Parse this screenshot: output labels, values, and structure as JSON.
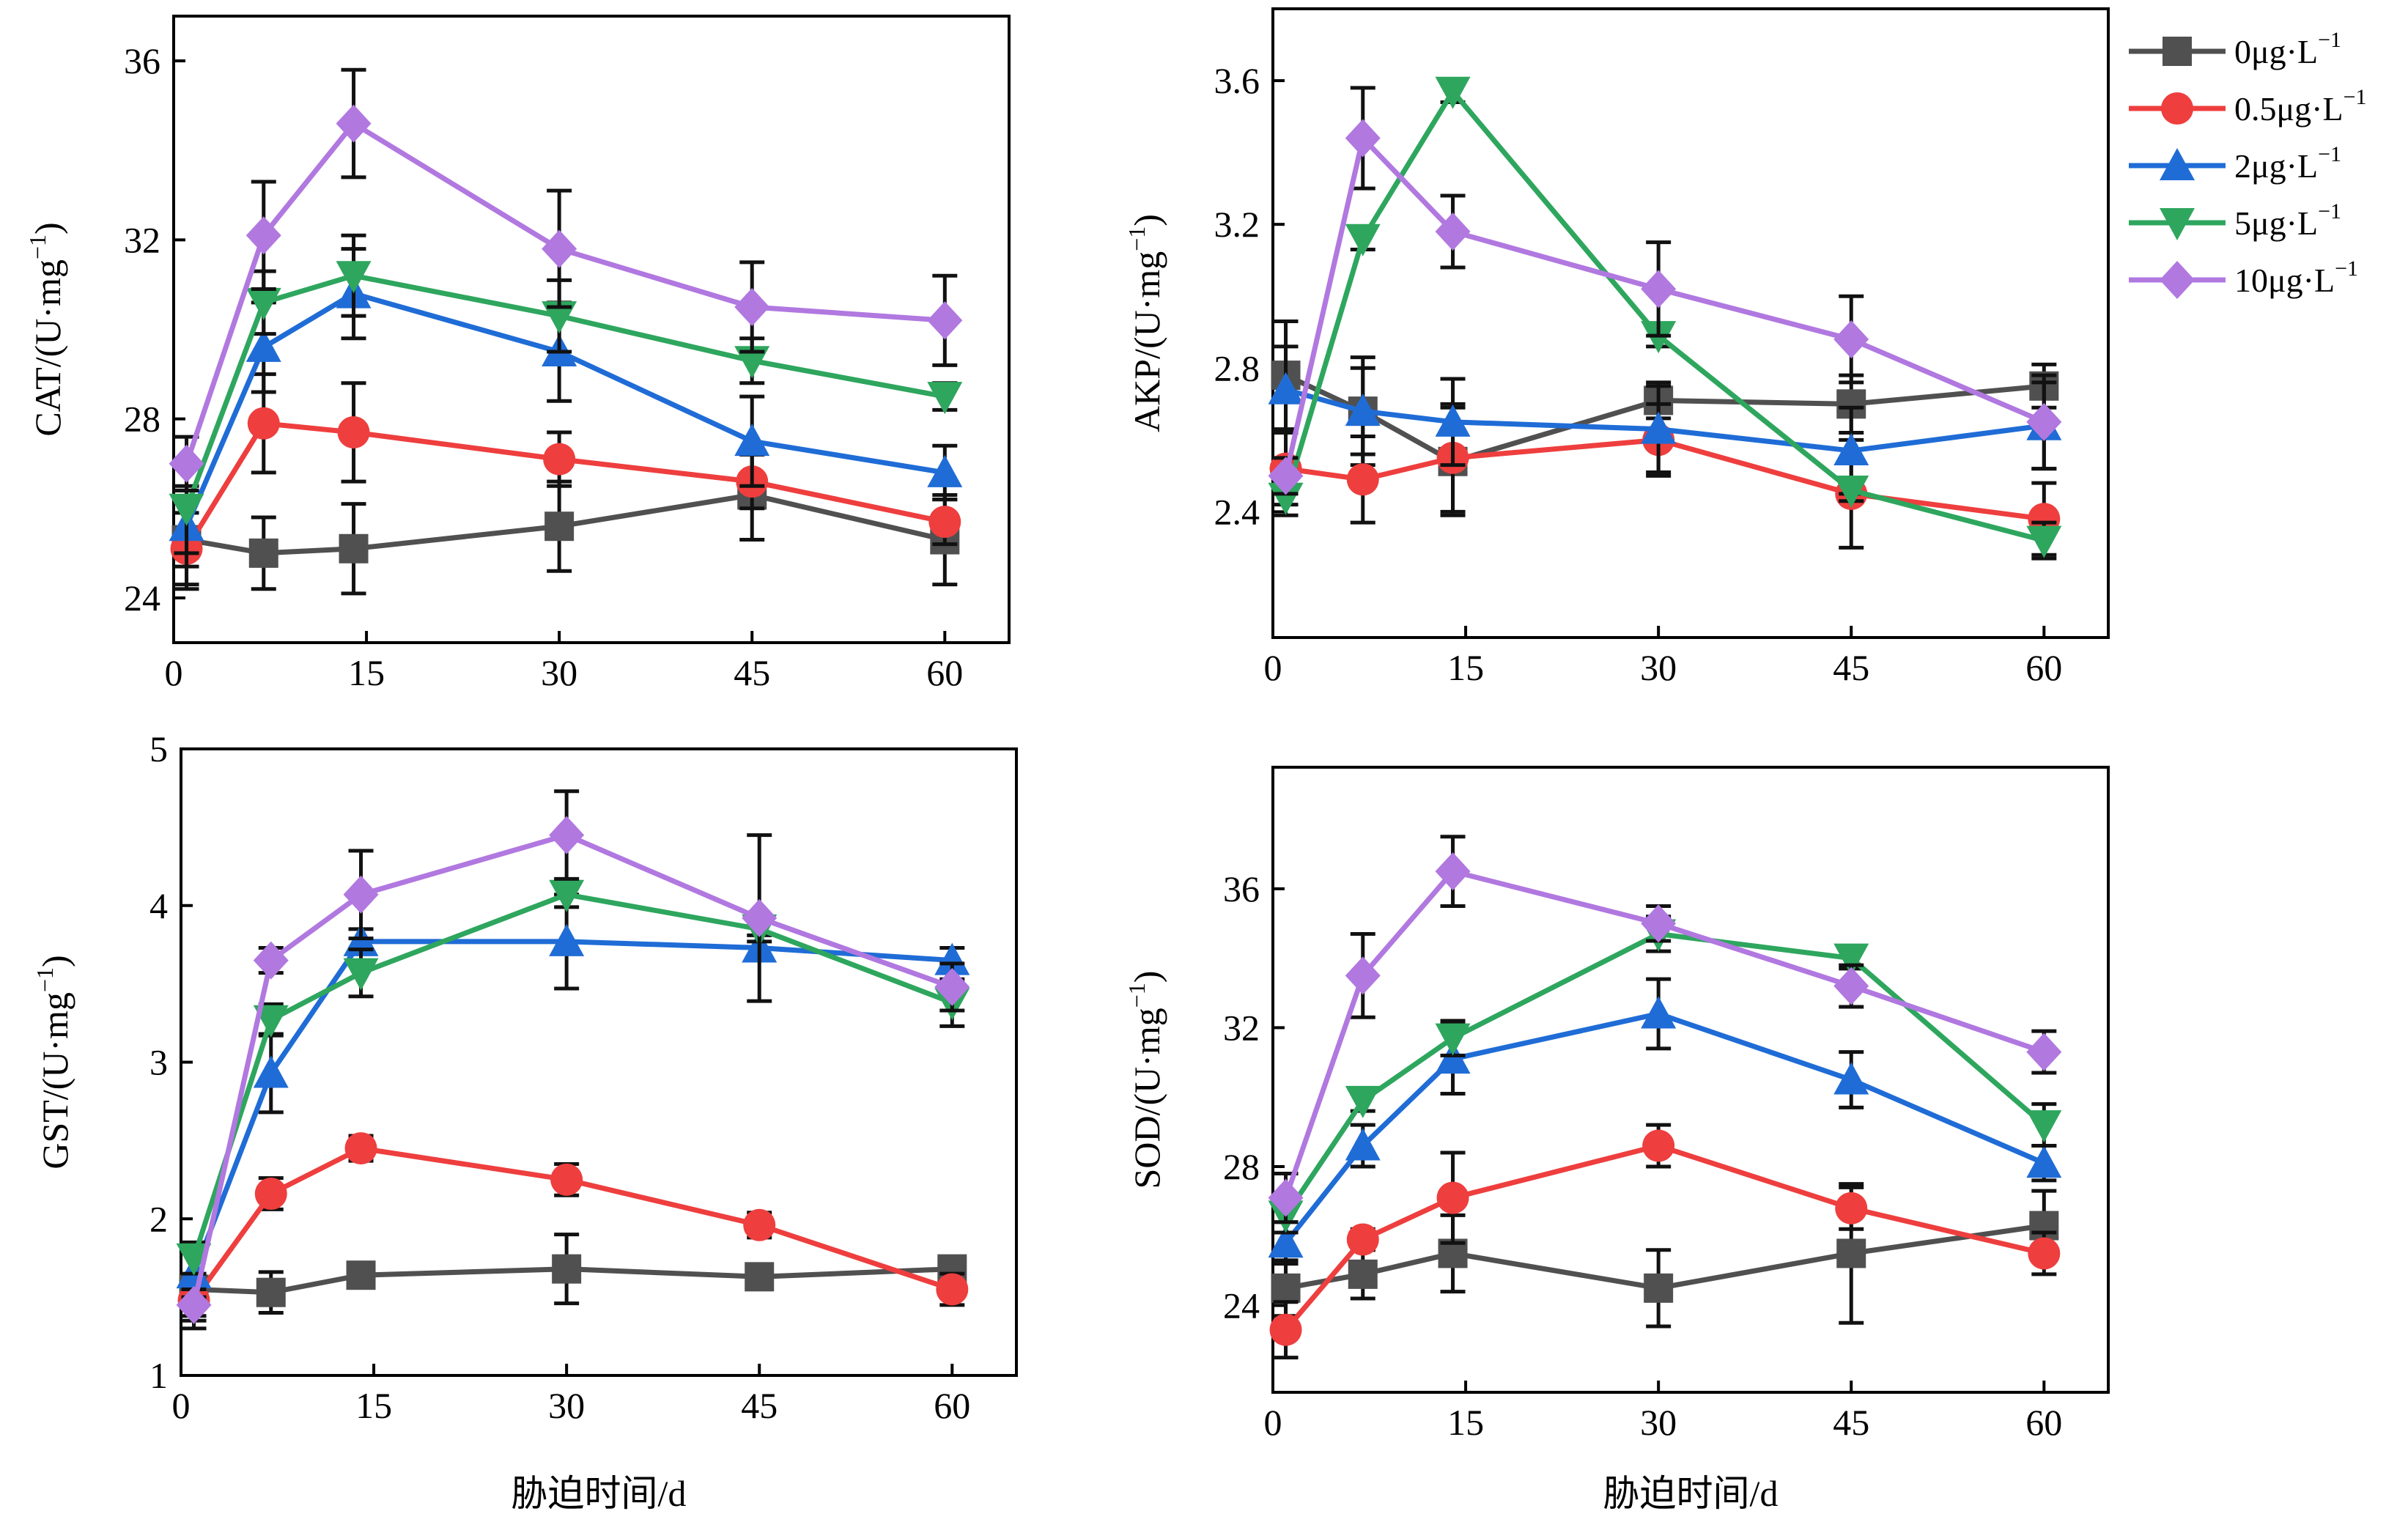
{
  "colors": {
    "0µg": "#505050",
    "0.5µg": "#ee3e3e",
    "2µg": "#1f6cd6",
    "5µg": "#2ea65e",
    "10µg": "#b178e0"
  },
  "legend": {
    "placement": "top-right",
    "entries": [
      {
        "key": "0µg",
        "label": "0μg·L",
        "sup": "−1",
        "marker": "square"
      },
      {
        "key": "0.5µg",
        "label": "0.5μg·L",
        "sup": "−1",
        "marker": "circle"
      },
      {
        "key": "2µg",
        "label": "2μg·L",
        "sup": "−1",
        "marker": "triangle-up"
      },
      {
        "key": "5µg",
        "label": "5μg·L",
        "sup": "−1",
        "marker": "triangle-down"
      },
      {
        "key": "10µg",
        "label": "10μg·L",
        "sup": "−1",
        "marker": "diamond"
      }
    ]
  },
  "chart_data": [
    {
      "id": "cat",
      "type": "line",
      "ylabel": "CAT/(U·mg",
      "ylabel_sup": "−1",
      "ylabel_close": ")",
      "xlabel": "",
      "x": [
        1,
        7,
        14,
        30,
        45,
        60
      ],
      "xticks": [
        0,
        15,
        30,
        45,
        60
      ],
      "xlim": [
        0,
        65
      ],
      "yticks": [
        24,
        28,
        32,
        36
      ],
      "ylim": [
        23,
        37
      ],
      "series": [
        {
          "key": "0µg",
          "values": [
            25.3,
            25.0,
            25.1,
            25.6,
            26.3,
            25.3
          ],
          "errors": [
            1.1,
            0.8,
            1.0,
            1.0,
            1.0,
            1.0
          ]
        },
        {
          "key": "0.5µg",
          "values": [
            25.1,
            27.9,
            27.7,
            27.1,
            26.6,
            25.7
          ],
          "errors": [
            0.8,
            1.1,
            1.1,
            0.6,
            0.6,
            0.5
          ]
        },
        {
          "key": "2µg",
          "values": [
            25.6,
            29.6,
            30.8,
            29.5,
            27.5,
            26.8
          ],
          "errors": [
            0.9,
            1.0,
            1.0,
            1.1,
            1.0,
            0.6
          ]
        },
        {
          "key": "5µg",
          "values": [
            26.0,
            30.6,
            31.2,
            30.3,
            29.3,
            28.5
          ],
          "errors": [
            1.0,
            0.7,
            0.9,
            0.8,
            0.5,
            0.3
          ]
        },
        {
          "key": "10µg",
          "values": [
            27.0,
            32.1,
            34.6,
            31.8,
            30.5,
            30.2
          ],
          "errors": [
            0.6,
            1.2,
            1.2,
            1.3,
            1.0,
            1.0
          ]
        }
      ]
    },
    {
      "id": "akp",
      "type": "line",
      "ylabel": "AKP/(U·mg",
      "ylabel_sup": "−1",
      "ylabel_close": ")",
      "xlabel": "",
      "x": [
        1,
        7,
        14,
        30,
        45,
        60
      ],
      "xticks": [
        0,
        15,
        30,
        45,
        60
      ],
      "xlim": [
        0,
        65
      ],
      "yticks": [
        2.4,
        2.8,
        3.2,
        3.6
      ],
      "ylim": [
        2.05,
        3.8
      ],
      "series": [
        {
          "key": "0µg",
          "values": [
            2.78,
            2.68,
            2.54,
            2.71,
            2.7,
            2.75
          ],
          "errors": [
            0.15,
            0.15,
            0.15,
            0.05,
            0.08,
            0.06
          ]
        },
        {
          "key": "0.5µg",
          "values": [
            2.52,
            2.49,
            2.55,
            2.6,
            2.45,
            2.38
          ],
          "errors": [
            0.1,
            0.12,
            0.15,
            0.1,
            0.15,
            0.1
          ]
        },
        {
          "key": "2µg",
          "values": [
            2.74,
            2.68,
            2.65,
            2.63,
            2.57,
            2.64
          ],
          "errors": [
            0.12,
            0.12,
            0.12,
            0.12,
            0.12,
            0.12
          ]
        },
        {
          "key": "5µg",
          "values": [
            2.44,
            3.16,
            3.57,
            2.89,
            2.46,
            2.32
          ],
          "errors": [
            0.05,
            0.03,
            0.03,
            0.03,
            0.03,
            0.05
          ]
        },
        {
          "key": "10µg",
          "values": [
            2.5,
            3.44,
            3.18,
            3.02,
            2.88,
            2.65
          ],
          "errors": [
            0.05,
            0.14,
            0.1,
            0.13,
            0.12,
            0.13
          ]
        }
      ]
    },
    {
      "id": "gst",
      "type": "line",
      "ylabel": "GST/(U·mg",
      "ylabel_sup": "−1",
      "ylabel_close": ")",
      "xlabel": "胁迫时间/d",
      "x": [
        1,
        7,
        14,
        30,
        45,
        60
      ],
      "xticks": [
        0,
        15,
        30,
        45,
        60
      ],
      "xlim": [
        0,
        65
      ],
      "yticks": [
        1,
        2,
        3,
        4,
        5
      ],
      "ylim": [
        1,
        5
      ],
      "series": [
        {
          "key": "0µg",
          "values": [
            1.55,
            1.53,
            1.64,
            1.68,
            1.63,
            1.68
          ],
          "errors": [
            0.25,
            0.13,
            0.08,
            0.22,
            0.08,
            0.07
          ]
        },
        {
          "key": "0.5µg",
          "values": [
            1.48,
            2.16,
            2.45,
            2.25,
            1.96,
            1.55
          ],
          "errors": [
            0.1,
            0.1,
            0.08,
            0.1,
            0.08,
            0.1
          ]
        },
        {
          "key": "2µg",
          "values": [
            1.65,
            2.93,
            3.77,
            3.77,
            3.73,
            3.65
          ],
          "errors": [
            0.15,
            0.25,
            0.08,
            0.3,
            0.08,
            0.08
          ]
        },
        {
          "key": "5µg",
          "values": [
            1.75,
            3.27,
            3.57,
            4.07,
            3.85,
            3.38
          ],
          "errors": [
            0.1,
            0.1,
            0.15,
            0.08,
            0.08,
            0.15
          ]
        },
        {
          "key": "10µg",
          "values": [
            1.45,
            3.65,
            4.07,
            4.45,
            3.92,
            3.48
          ],
          "errors": [
            0.1,
            0.08,
            0.28,
            0.28,
            0.53,
            0.15
          ]
        }
      ]
    },
    {
      "id": "sod",
      "type": "line",
      "ylabel": "SOD/(U·mg",
      "ylabel_sup": "−1",
      "ylabel_close": ")",
      "xlabel": "胁迫时间/d",
      "x": [
        1,
        7,
        14,
        30,
        45,
        60
      ],
      "xticks": [
        0,
        15,
        30,
        45,
        60
      ],
      "xlim": [
        0,
        65
      ],
      "yticks": [
        24,
        28,
        32,
        36
      ],
      "ylim": [
        21.5,
        39.5
      ],
      "series": [
        {
          "key": "0µg",
          "values": [
            24.5,
            24.9,
            25.5,
            24.5,
            25.5,
            26.3
          ],
          "errors": [
            0.8,
            0.7,
            1.1,
            1.1,
            2.0,
            1.0
          ]
        },
        {
          "key": "0.5µg",
          "values": [
            23.3,
            25.9,
            27.1,
            28.6,
            26.8,
            25.5
          ],
          "errors": [
            0.8,
            0.3,
            1.3,
            0.6,
            0.6,
            0.6
          ]
        },
        {
          "key": "2µg",
          "values": [
            25.8,
            28.6,
            31.1,
            32.4,
            30.5,
            28.1
          ],
          "errors": [
            0.6,
            0.6,
            1.0,
            1.0,
            0.8,
            0.5
          ]
        },
        {
          "key": "5µg",
          "values": [
            26.6,
            29.9,
            31.7,
            34.7,
            34.0,
            29.2
          ],
          "errors": [
            0.5,
            0.3,
            0.5,
            0.5,
            0.3,
            0.6
          ]
        },
        {
          "key": "10µg",
          "values": [
            27.1,
            33.5,
            36.5,
            35.0,
            33.2,
            31.3
          ],
          "errors": [
            0.7,
            1.2,
            1.0,
            0.5,
            0.6,
            0.6
          ]
        }
      ]
    }
  ]
}
